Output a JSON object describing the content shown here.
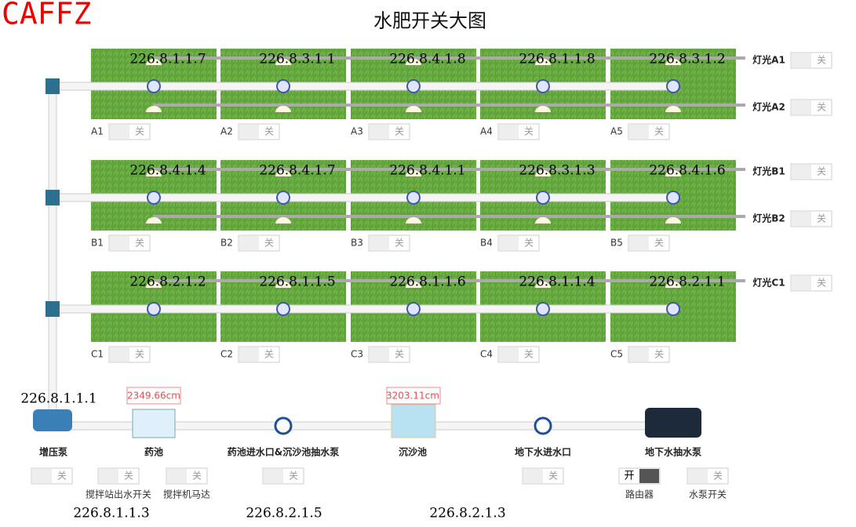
{
  "logo": "CAFFZ",
  "title": "水肥开关大图",
  "rows": [
    {
      "fields": [
        {
          "ip": "226.8.1.1.7",
          "label": "A1",
          "state": "关"
        },
        {
          "ip": "226.8.3.1.1",
          "label": "A2",
          "state": "关"
        },
        {
          "ip": "226.8.4.1.8",
          "label": "A3",
          "state": "关"
        },
        {
          "ip": "226.8.1.1.8",
          "label": "A4",
          "state": "关"
        },
        {
          "ip": "226.8.3.1.2",
          "label": "A5",
          "state": "关"
        }
      ],
      "lights": [
        {
          "label": "灯光A1",
          "state": "关"
        },
        {
          "label": "灯光A2",
          "state": "关"
        }
      ]
    },
    {
      "fields": [
        {
          "ip": "226.8.4.1.4",
          "label": "B1",
          "state": "关"
        },
        {
          "ip": "226.8.4.1.7",
          "label": "B2",
          "state": "关"
        },
        {
          "ip": "226.8.4.1.1",
          "label": "B3",
          "state": "关"
        },
        {
          "ip": "226.8.3.1.3",
          "label": "B4",
          "state": "关"
        },
        {
          "ip": "226.8.4.1.6",
          "label": "B5",
          "state": "关"
        }
      ],
      "lights": [
        {
          "label": "灯光B1",
          "state": "关"
        },
        {
          "label": "灯光B2",
          "state": "关"
        }
      ]
    },
    {
      "fields": [
        {
          "ip": "226.8.2.1.2",
          "label": "C1",
          "state": "关"
        },
        {
          "ip": "226.8.1.1.5",
          "label": "C2",
          "state": "关"
        },
        {
          "ip": "226.8.1.1.6",
          "label": "C3",
          "state": "关"
        },
        {
          "ip": "226.8.1.1.4",
          "label": "C4",
          "state": "关"
        },
        {
          "ip": "226.8.2.1.1",
          "label": "C5",
          "state": "关"
        }
      ],
      "lights": [
        {
          "label": "灯光C1",
          "state": "关"
        }
      ]
    }
  ],
  "pump_ip": "226.8.1.1.1",
  "equipment": [
    "增压泵",
    "药池",
    "药池进水口&沉沙池抽水泵",
    "沉沙池",
    "地下水进水口",
    "地下水抽水泵"
  ],
  "levels": [
    "2349.66cm",
    "3203.11cm"
  ],
  "switches": [
    {
      "state": "关"
    },
    {
      "state": "关",
      "label": "搅拌站出水开关"
    },
    {
      "state": "关",
      "label": "搅拌机马达"
    },
    {
      "state": "关"
    },
    {
      "state": "关"
    },
    {
      "state": "开",
      "label": "路由器"
    },
    {
      "state": "关",
      "label": "水泵开关"
    }
  ],
  "ips": [
    "226.8.1.1.3",
    "226.8.2.1.5",
    "226.8.2.1.3"
  ]
}
